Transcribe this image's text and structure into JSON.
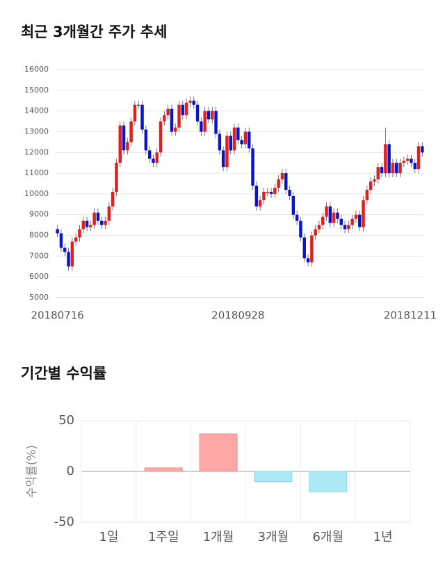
{
  "chart_data": [
    {
      "type": "candlestick",
      "title": "최근 3개월간 주가 추세",
      "categories": [
        "20180716",
        null,
        null,
        null,
        null,
        null,
        null,
        null,
        null,
        null,
        null,
        null,
        null,
        null,
        null,
        null,
        null,
        null,
        null,
        null,
        null,
        null,
        null,
        null,
        null,
        null,
        null,
        null,
        null,
        null,
        null,
        null,
        null,
        null,
        null,
        null,
        null,
        null,
        null,
        null,
        null,
        null,
        null,
        null,
        null,
        null,
        null,
        null,
        null,
        "20180928",
        null,
        null,
        null,
        null,
        null,
        null,
        null,
        null,
        null,
        null,
        null,
        null,
        null,
        null,
        null,
        null,
        null,
        null,
        null,
        null,
        null,
        null,
        null,
        null,
        null,
        null,
        null,
        null,
        null,
        null,
        null,
        null,
        null,
        null,
        null,
        null,
        null,
        null,
        null,
        null,
        null,
        null,
        null,
        null,
        null,
        null,
        null,
        null,
        null,
        "20181211"
      ],
      "open": [
        8300,
        8100,
        7400,
        7200,
        6500,
        7700,
        7900,
        8300,
        8700,
        8400,
        8500,
        9100,
        8700,
        8500,
        8700,
        9400,
        10100,
        11500,
        13300,
        12100,
        12500,
        13500,
        14300,
        14300,
        13100,
        12100,
        11700,
        11500,
        12000,
        13500,
        13800,
        14100,
        13000,
        13200,
        14300,
        13800,
        14400,
        14500,
        14300,
        13500,
        13000,
        14000,
        13600,
        14000,
        12900,
        12100,
        11300,
        12800,
        12100,
        13200,
        12600,
        12400,
        13000,
        12200,
        10400,
        9400,
        9700,
        10100,
        10100,
        10000,
        10300,
        10700,
        11000,
        10200,
        9900,
        9000,
        8700,
        7900,
        6900,
        6700,
        8000,
        8300,
        8500,
        8900,
        9400,
        8600,
        9100,
        8800,
        8500,
        8300,
        8500,
        8800,
        9000,
        8400,
        9700,
        10200,
        10600,
        10700,
        11300,
        11000,
        12400,
        11000,
        11500,
        11000,
        11500,
        11600,
        11700,
        11500,
        11200,
        12300
      ],
      "high": [
        8500,
        8300,
        7600,
        7400,
        7900,
        8100,
        8500,
        8900,
        8900,
        8700,
        9300,
        9300,
        8900,
        8900,
        9600,
        10300,
        11700,
        13500,
        13500,
        12700,
        13700,
        14500,
        14500,
        14500,
        13300,
        12300,
        11900,
        12200,
        13700,
        14000,
        14300,
        14300,
        13400,
        14500,
        14500,
        14600,
        14700,
        14700,
        14500,
        13700,
        14200,
        14200,
        14200,
        14200,
        13100,
        12300,
        13000,
        13000,
        13400,
        13400,
        12800,
        13200,
        13200,
        12400,
        10600,
        9900,
        10300,
        10300,
        10300,
        10500,
        10900,
        11200,
        11200,
        10400,
        10100,
        9200,
        8900,
        8100,
        7100,
        8200,
        8500,
        8700,
        9100,
        9600,
        9600,
        9300,
        9300,
        9000,
        8700,
        8700,
        9000,
        9200,
        9200,
        9900,
        10400,
        10800,
        10900,
        11500,
        11500,
        13200,
        12600,
        11700,
        11700,
        11700,
        11800,
        11900,
        11900,
        11700,
        12500,
        12500
      ],
      "low": [
        7900,
        7200,
        7000,
        6300,
        6300,
        7500,
        7700,
        8100,
        8200,
        8200,
        8300,
        8500,
        8300,
        8300,
        8500,
        9200,
        9900,
        11300,
        11900,
        11900,
        12300,
        13300,
        14100,
        12900,
        11900,
        11500,
        11300,
        11300,
        11800,
        13300,
        13600,
        12800,
        12800,
        13000,
        13600,
        13600,
        14200,
        14100,
        13300,
        12800,
        12800,
        13400,
        13400,
        12700,
        11900,
        11100,
        11100,
        11900,
        11900,
        12400,
        12200,
        12200,
        12000,
        10200,
        9200,
        9200,
        9500,
        9900,
        9800,
        9800,
        10100,
        10500,
        10000,
        9700,
        8800,
        8500,
        7700,
        6700,
        6500,
        6500,
        7800,
        8100,
        8300,
        8700,
        8400,
        8400,
        8600,
        8300,
        8100,
        8100,
        8300,
        8600,
        8200,
        8200,
        9500,
        10000,
        10400,
        10500,
        10800,
        10800,
        10800,
        10800,
        10800,
        10800,
        11300,
        11400,
        11300,
        11000,
        11000,
        11800
      ],
      "close": [
        8100,
        7400,
        7200,
        6500,
        7700,
        7900,
        8300,
        8700,
        8400,
        8500,
        9100,
        8700,
        8500,
        8700,
        9400,
        10100,
        11500,
        13300,
        12100,
        12500,
        13500,
        14300,
        14300,
        13100,
        12100,
        11700,
        11500,
        12000,
        13500,
        13800,
        14100,
        13000,
        13200,
        14300,
        13800,
        14400,
        14500,
        14300,
        13500,
        13000,
        14000,
        13600,
        14000,
        12900,
        12100,
        11300,
        12800,
        12100,
        13200,
        12600,
        12400,
        13000,
        12200,
        10400,
        9400,
        9700,
        10100,
        10100,
        10000,
        10300,
        10700,
        11000,
        10200,
        9900,
        9000,
        8700,
        7900,
        6900,
        6700,
        8000,
        8300,
        8500,
        8900,
        9400,
        8600,
        9100,
        8800,
        8500,
        8300,
        8500,
        8800,
        9000,
        8400,
        9700,
        10200,
        10600,
        10700,
        11300,
        11000,
        12400,
        11000,
        11500,
        11000,
        11500,
        11600,
        11700,
        11500,
        11200,
        12300,
        12000
      ],
      "up_color": "#e02020",
      "down_color": "#0a14c8",
      "ylim": [
        5000,
        16000
      ],
      "yticks": [
        5000,
        6000,
        7000,
        8000,
        9000,
        10000,
        11000,
        12000,
        13000,
        14000,
        15000,
        16000
      ],
      "grid": true
    },
    {
      "type": "bar",
      "title": "기간별 수익률",
      "y_label": "수익률(%)",
      "categories": [
        "1일",
        "1주일",
        "1개월",
        "3개월",
        "6개월",
        "1년"
      ],
      "values": [
        null,
        3.5,
        37,
        -10,
        -20,
        null
      ],
      "positive_color": "#ffa6a6",
      "negative_color": "#aeeaf5",
      "ylim": [
        -50,
        50
      ],
      "yticks": [
        -50,
        0,
        50
      ],
      "grid": true
    }
  ]
}
